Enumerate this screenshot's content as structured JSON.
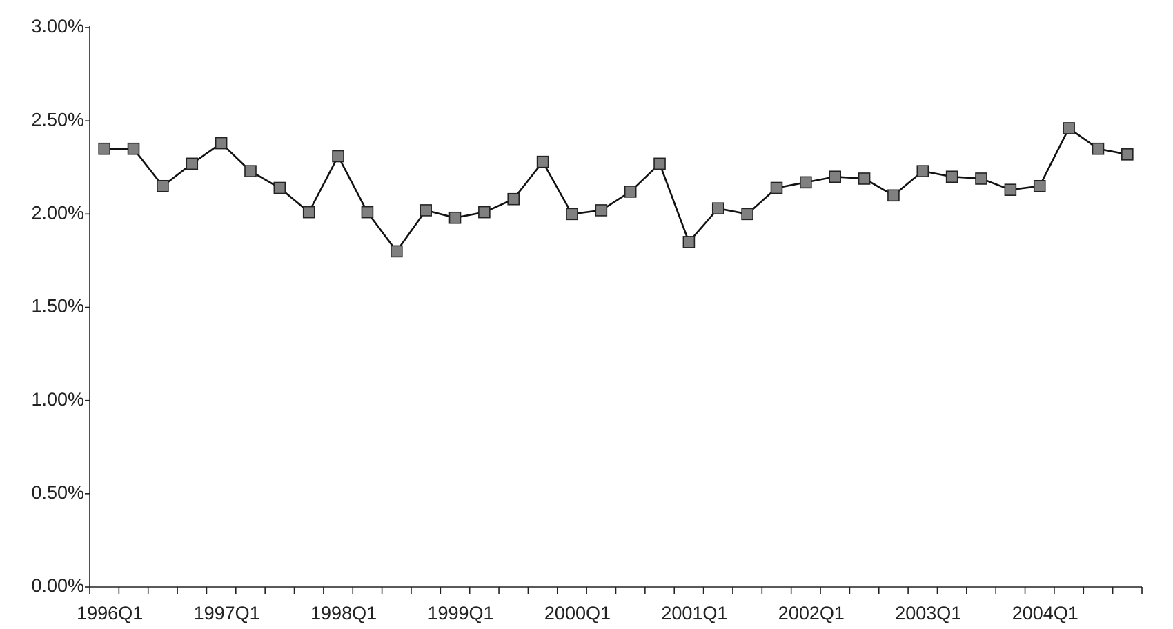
{
  "chart_data": {
    "type": "line",
    "categories": [
      "1996Q1",
      null,
      null,
      null,
      "1997Q1",
      null,
      null,
      null,
      "1998Q1",
      null,
      null,
      null,
      "1999Q1",
      null,
      null,
      null,
      "2000Q1",
      null,
      null,
      null,
      "2001Q1",
      null,
      null,
      null,
      "2002Q1",
      null,
      null,
      null,
      "2003Q1",
      null,
      null,
      null,
      "2004Q1",
      null,
      null,
      null
    ],
    "values": [
      2.35,
      2.35,
      2.15,
      2.27,
      2.38,
      2.23,
      2.14,
      2.01,
      2.31,
      2.01,
      1.8,
      2.02,
      1.98,
      2.01,
      2.08,
      2.28,
      2.0,
      2.02,
      2.12,
      2.27,
      1.85,
      2.03,
      2.0,
      2.14,
      2.17,
      2.2,
      2.19,
      2.1,
      2.23,
      2.2,
      2.19,
      2.13,
      2.15,
      2.46,
      2.35,
      2.32
    ],
    "color": "#808080",
    "ylim": [
      0,
      3
    ],
    "yticks": [
      {
        "value": 0,
        "label": "0.00%"
      },
      {
        "value": 0.5,
        "label": "0.50%"
      },
      {
        "value": 1,
        "label": "1.00%"
      },
      {
        "value": 1.5,
        "label": "1.50%"
      },
      {
        "value": 2,
        "label": "2.00%"
      },
      {
        "value": 2.5,
        "label": "2.50%"
      },
      {
        "value": 3,
        "label": "3.00%"
      }
    ],
    "grid": false
  }
}
